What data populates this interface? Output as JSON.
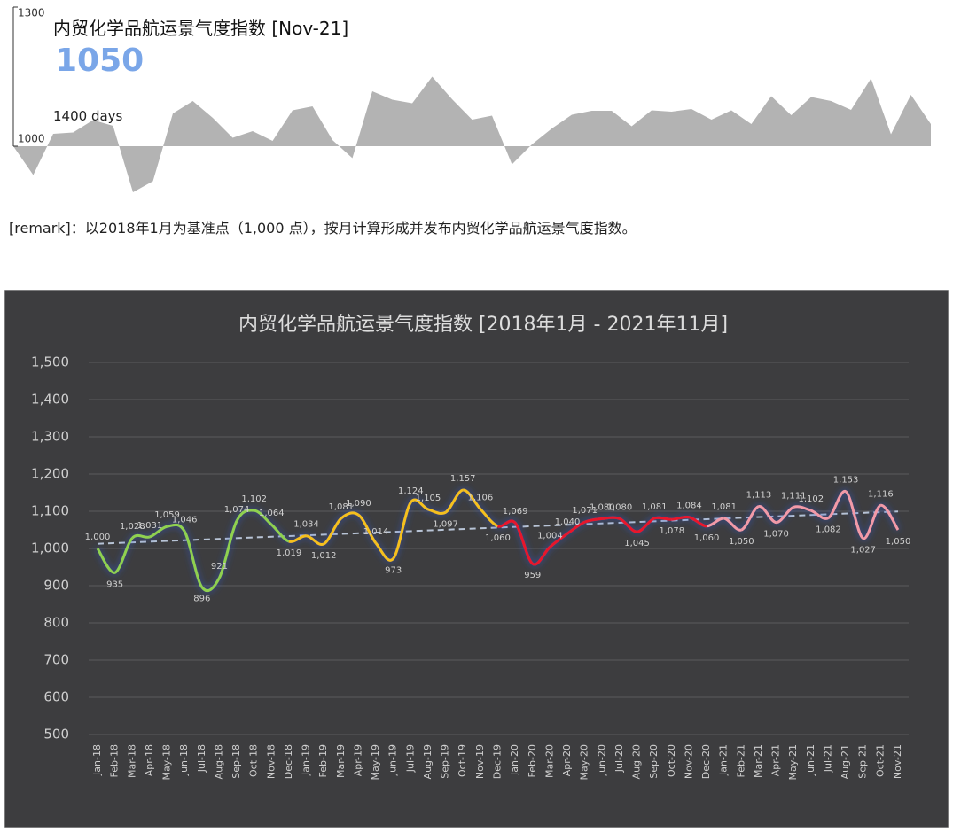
{
  "kpi": {
    "title": "内贸化学品航运景气度指数 [Nov-21]",
    "value": "1050",
    "days": "1400 days",
    "sparkline": {
      "type": "area",
      "color": "#b3b3b3",
      "ylim": [
        1000,
        1300
      ],
      "yticks": [
        1300,
        1000
      ]
    }
  },
  "remark": "[remark]：以2018年1月为基准点（1,000 点），按月计算形成并发布内贸化学品航运景气度指数。",
  "chart_data": {
    "type": "line",
    "title": "内贸化学品航运景气度指数 [2018年1月 - 2021年11月]",
    "categories": [
      "Jan-18",
      "Feb-18",
      "Mar-18",
      "Apr-18",
      "May-18",
      "Jun-18",
      "Jul-18",
      "Aug-18",
      "Sep-18",
      "Oct-18",
      "Nov-18",
      "Dec-18",
      "Jan-19",
      "Feb-19",
      "Mar-19",
      "Apr-19",
      "May-19",
      "Jun-19",
      "Jul-19",
      "Aug-19",
      "Sep-19",
      "Oct-19",
      "Nov-19",
      "Dec-19",
      "Jan-20",
      "Feb-20",
      "Mar-20",
      "Apr-20",
      "May-20",
      "Jun-20",
      "Jul-20",
      "Aug-20",
      "Sep-20",
      "Oct-20",
      "Nov-20",
      "Dec-20",
      "Jan-21",
      "Feb-21",
      "Mar-21",
      "Apr-21",
      "May-21",
      "Jun-21",
      "Jul-21",
      "Aug-21",
      "Sep-21",
      "Oct-21",
      "Nov-21"
    ],
    "values": [
      1000,
      935,
      1028,
      1031,
      1059,
      1046,
      896,
      921,
      1074,
      1102,
      1064,
      1019,
      1034,
      1012,
      1081,
      1090,
      1014,
      973,
      1124,
      1105,
      1097,
      1157,
      1106,
      1060,
      1069,
      959,
      1004,
      1040,
      1071,
      1080,
      1080,
      1045,
      1081,
      1078,
      1084,
      1060,
      1081,
      1050,
      1113,
      1070,
      1111,
      1102,
      1082,
      1153,
      1027,
      1116,
      1050
    ],
    "value_labels": [
      "1,000",
      "935",
      "1,028",
      "1,031",
      "1,059",
      "1,046",
      "896",
      "921",
      "1,074",
      "1,102",
      "1,064",
      "1,019",
      "1,034",
      "1,012",
      "1,081",
      "1,090",
      "1,014",
      "973",
      "1,124",
      "1,105",
      "1,097",
      "1,157",
      "1,106",
      "1,060",
      "1,069",
      "959",
      "1,004",
      "1,040",
      "1,071",
      "1,080",
      "1,080",
      "1,045",
      "1,081",
      "1,078",
      "1,084",
      "1,060",
      "1,081",
      "1,050",
      "1,113",
      "1,070",
      "1,111",
      "1,102",
      "1,082",
      "1,153",
      "1,027",
      "1,116",
      "1,050"
    ],
    "year_colors": [
      "#8fd14f",
      "#f5c01c",
      "#e8132b",
      "#f29aa8"
    ],
    "ylim": [
      500,
      1500
    ],
    "yticks": [
      500,
      600,
      700,
      800,
      900,
      {
        "value": 1000,
        "label": "1,000"
      },
      {
        "value": 1100,
        "label": "1,100"
      },
      {
        "value": 1200,
        "label": "1,200"
      },
      {
        "value": 1300,
        "label": "1,300"
      },
      {
        "value": 1400,
        "label": "1,400"
      },
      {
        "value": 1500,
        "label": "1,500"
      }
    ],
    "grid": true,
    "trendline": true
  }
}
